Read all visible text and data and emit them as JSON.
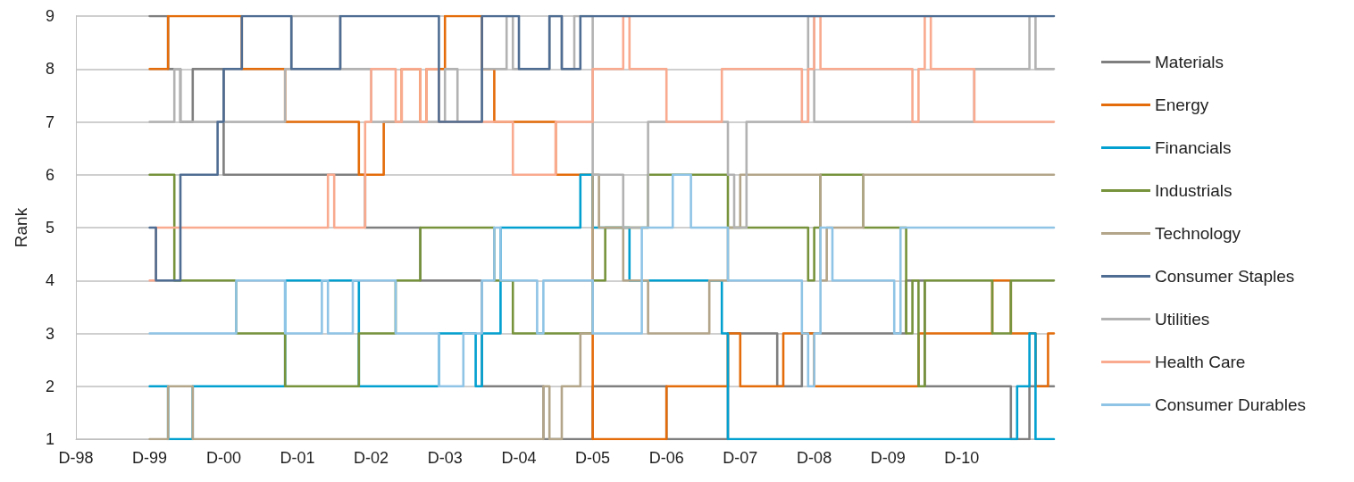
{
  "chart_data": {
    "type": "step",
    "ylabel": "Rank",
    "legend": "right",
    "grid": "y",
    "marker": "none",
    "xlim": [
      "1998-12",
      "2012-03"
    ],
    "xticks": [
      {
        "value": "1998-12",
        "label": "D-98"
      },
      {
        "value": "1999-12",
        "label": "D-99"
      },
      {
        "value": "2000-12",
        "label": "D-00"
      },
      {
        "value": "2001-12",
        "label": "D-01"
      },
      {
        "value": "2002-12",
        "label": "D-02"
      },
      {
        "value": "2003-12",
        "label": "D-03"
      },
      {
        "value": "2004-12",
        "label": "D-04"
      },
      {
        "value": "2005-12",
        "label": "D-05"
      },
      {
        "value": "2006-12",
        "label": "D-06"
      },
      {
        "value": "2007-12",
        "label": "D-07"
      },
      {
        "value": "2008-12",
        "label": "D-08"
      },
      {
        "value": "2009-12",
        "label": "D-09"
      },
      {
        "value": "2010-12",
        "label": "D-10"
      }
    ],
    "ylim": [
      1,
      9
    ],
    "yticks": [
      1,
      2,
      3,
      4,
      5,
      6,
      7,
      8,
      9
    ],
    "series": [
      {
        "name": "Materials",
        "color": "#7f7f7f",
        "x": [
          "1999-12",
          "2000-03",
          "2000-05",
          "2000-07",
          "2000-12",
          "2002-11",
          "2003-08",
          "2004-06",
          "2005-04",
          "2005-12",
          "2006-12",
          "2007-10",
          "2008-06",
          "2008-10",
          "2010-03",
          "2010-06",
          "2011-08",
          "2011-11",
          "2012-03"
        ],
        "values": [
          9,
          8,
          7,
          8,
          6,
          5,
          4,
          2,
          1,
          2,
          1,
          3,
          2,
          3,
          4,
          2,
          1,
          2,
          2
        ]
      },
      {
        "name": "Energy",
        "color": "#e46c0a",
        "x": [
          "1999-12",
          "2000-03",
          "2001-03",
          "2001-10",
          "2002-10",
          "2003-02",
          "2003-05",
          "2003-08",
          "2003-09",
          "2003-12",
          "2004-06",
          "2004-08",
          "2005-06",
          "2005-12",
          "2006-12",
          "2007-10",
          "2007-12",
          "2008-07",
          "2008-12",
          "2010-05",
          "2011-05",
          "2011-08",
          "2011-12",
          "2012-02",
          "2012-03"
        ],
        "values": [
          8,
          9,
          8,
          7,
          6,
          7,
          8,
          7,
          8,
          9,
          8,
          7,
          6,
          1,
          2,
          3,
          2,
          3,
          2,
          3,
          4,
          3,
          2,
          3,
          3
        ]
      },
      {
        "name": "Financials",
        "color": "#02a0d0",
        "x": [
          "1999-12",
          "2000-03",
          "2000-07",
          "2001-10",
          "2002-10",
          "2003-11",
          "2004-05",
          "2004-06",
          "2004-09",
          "2005-10",
          "2005-12",
          "2006-06",
          "2007-09",
          "2007-10",
          "2011-09",
          "2011-11",
          "2011-12",
          "2012-03"
        ],
        "values": [
          2,
          1,
          2,
          4,
          2,
          3,
          2,
          3,
          5,
          6,
          5,
          4,
          3,
          1,
          2,
          3,
          1,
          1
        ]
      },
      {
        "name": "Industrials",
        "color": "#77933c",
        "x": [
          "1999-12",
          "2000-04",
          "2001-02",
          "2001-10",
          "2002-10",
          "2003-04",
          "2003-08",
          "2004-08",
          "2004-11",
          "2005-12",
          "2006-02",
          "2006-09",
          "2007-10",
          "2008-11",
          "2008-12",
          "2009-01",
          "2009-08",
          "2010-03",
          "2010-04",
          "2010-05",
          "2010-06",
          "2011-05",
          "2011-08",
          "2012-03"
        ],
        "values": [
          6,
          4,
          3,
          2,
          3,
          4,
          5,
          4,
          3,
          4,
          5,
          6,
          5,
          4,
          5,
          6,
          5,
          3,
          4,
          2,
          4,
          3,
          4,
          4
        ]
      },
      {
        "name": "Technology",
        "color": "#b3a589",
        "x": [
          "1999-12",
          "2000-03",
          "2000-07",
          "2005-04",
          "2005-05",
          "2005-07",
          "2005-10",
          "2005-12",
          "2006-01",
          "2006-05",
          "2006-09",
          "2007-07",
          "2007-10",
          "2007-12",
          "2009-01",
          "2009-02",
          "2009-08",
          "2012-03"
        ],
        "values": [
          1,
          2,
          1,
          2,
          1,
          2,
          3,
          6,
          5,
          4,
          3,
          4,
          5,
          6,
          4,
          5,
          6,
          6
        ]
      },
      {
        "name": "Consumer Staples",
        "color": "#4f6d92",
        "x": [
          "1999-12",
          "2000-01",
          "2000-05",
          "2000-11",
          "2000-12",
          "2001-03",
          "2001-11",
          "2002-07",
          "2003-11",
          "2004-06",
          "2004-12",
          "2005-05",
          "2005-07",
          "2005-10",
          "2012-03"
        ],
        "values": [
          5,
          4,
          6,
          7,
          8,
          9,
          8,
          9,
          7,
          9,
          8,
          9,
          8,
          9,
          9
        ]
      },
      {
        "name": "Utilities",
        "color": "#b2b2b2",
        "x": [
          "1999-12",
          "2000-04",
          "2000-05",
          "2001-10",
          "2001-11",
          "2002-07",
          "2002-12",
          "2003-12",
          "2004-02",
          "2004-06",
          "2004-10",
          "2004-11",
          "2005-05",
          "2005-07",
          "2005-09",
          "2005-12",
          "2006-05",
          "2006-09",
          "2007-10",
          "2007-11",
          "2008-01",
          "2008-11",
          "2008-12",
          "2011-02",
          "2011-11",
          "2011-12",
          "2012-03"
        ],
        "values": [
          7,
          8,
          7,
          8,
          9,
          8,
          7,
          8,
          7,
          8,
          9,
          8,
          9,
          8,
          9,
          6,
          5,
          7,
          6,
          5,
          7,
          9,
          7,
          8,
          9,
          8,
          8
        ]
      },
      {
        "name": "Health Care",
        "color": "#f9aa8f",
        "x": [
          "1999-12",
          "2000-01",
          "2002-05",
          "2002-06",
          "2002-11",
          "2002-12",
          "2003-04",
          "2003-05",
          "2003-08",
          "2003-09",
          "2003-11",
          "2004-11",
          "2005-06",
          "2005-12",
          "2006-05",
          "2006-06",
          "2006-12",
          "2007-09",
          "2008-10",
          "2008-11",
          "2008-12",
          "2009-01",
          "2010-04",
          "2010-05",
          "2010-06",
          "2010-07",
          "2011-02",
          "2012-03"
        ],
        "values": [
          4,
          5,
          6,
          5,
          7,
          8,
          7,
          8,
          7,
          8,
          7,
          6,
          7,
          8,
          9,
          8,
          7,
          8,
          7,
          8,
          9,
          8,
          7,
          8,
          9,
          8,
          7,
          7
        ]
      },
      {
        "name": "Consumer Durables",
        "color": "#8fc4e6",
        "x": [
          "1999-12",
          "2001-02",
          "2001-10",
          "2002-04",
          "2002-05",
          "2002-09",
          "2003-04",
          "2003-11",
          "2004-03",
          "2004-06",
          "2004-08",
          "2004-09",
          "2005-03",
          "2005-04",
          "2005-12",
          "2006-08",
          "2007-01",
          "2007-04",
          "2007-10",
          "2008-10",
          "2008-11",
          "2008-12",
          "2009-01",
          "2009-03",
          "2010-01",
          "2010-02",
          "2012-03"
        ],
        "values": [
          3,
          4,
          3,
          4,
          3,
          4,
          3,
          2,
          3,
          4,
          5,
          4,
          3,
          4,
          3,
          5,
          6,
          5,
          4,
          3,
          2,
          3,
          5,
          4,
          3,
          5,
          5
        ]
      }
    ]
  }
}
